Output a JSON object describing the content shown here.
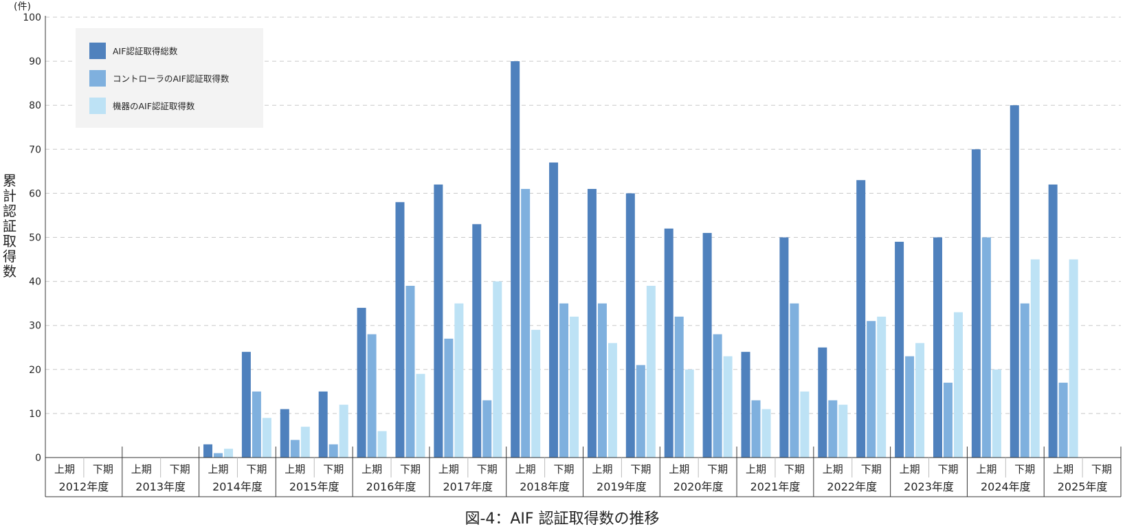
{
  "chart_data": {
    "type": "bar",
    "title": "図-4：AIF 認証取得数の推移",
    "ylabel": "累計認証取得数",
    "y_unit": "(件)",
    "ylim": [
      0,
      100
    ],
    "y_ticks": [
      0,
      10,
      20,
      30,
      40,
      50,
      60,
      70,
      80,
      90,
      100
    ],
    "grid": true,
    "legend_position": "top-left",
    "half_labels": [
      "上期",
      "下期"
    ],
    "years": [
      "2012年度",
      "2013年度",
      "2014年度",
      "2015年度",
      "2016年度",
      "2017年度",
      "2018年度",
      "2019年度",
      "2020年度",
      "2021年度",
      "2022年度",
      "2023年度",
      "2024年度",
      "2025年度"
    ],
    "series": [
      {
        "name": "AIF認証取得総数",
        "color": "#4f81bd",
        "values": [
          0,
          0,
          0,
          0,
          3,
          24,
          11,
          15,
          34,
          58,
          62,
          53,
          90,
          67,
          61,
          60,
          52,
          51,
          24,
          50,
          25,
          63,
          49,
          50,
          70,
          80,
          62,
          0
        ]
      },
      {
        "name": "コントローラのAIF認証取得数",
        "color": "#7fb0de",
        "values": [
          0,
          0,
          0,
          0,
          1,
          15,
          4,
          3,
          28,
          39,
          27,
          13,
          61,
          35,
          35,
          21,
          32,
          28,
          13,
          35,
          13,
          31,
          23,
          17,
          50,
          35,
          17,
          0
        ]
      },
      {
        "name": "機器のAIF認証取得数",
        "color": "#bde2f5",
        "values": [
          0,
          0,
          0,
          0,
          2,
          9,
          7,
          12,
          6,
          19,
          35,
          40,
          29,
          32,
          26,
          39,
          20,
          23,
          11,
          15,
          12,
          32,
          26,
          33,
          20,
          45,
          45,
          0
        ]
      }
    ]
  }
}
